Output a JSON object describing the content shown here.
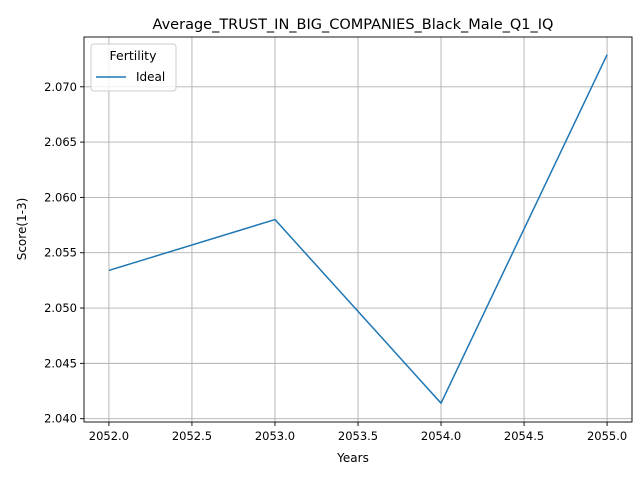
{
  "chart_data": {
    "type": "line",
    "title": "Average_TRUST_IN_BIG_COMPANIES_Black_Male_Q1_IQ",
    "xlabel": "Years",
    "ylabel": "Score(1-3)",
    "x": [
      2052,
      2053,
      2054,
      2055
    ],
    "series": [
      {
        "name": "Ideal",
        "values": [
          2.0534,
          2.058,
          2.0414,
          2.0729
        ],
        "color": "#1f77b4"
      }
    ],
    "xlim": [
      2051.85,
      2055.15
    ],
    "ylim": [
      2.0397,
      2.0745
    ],
    "xticks": [
      "2052.0",
      "2052.5",
      "2053.0",
      "2053.5",
      "2054.0",
      "2054.5",
      "2055.0"
    ],
    "yticks": [
      "2.040",
      "2.045",
      "2.050",
      "2.055",
      "2.060",
      "2.065",
      "2.070"
    ],
    "grid": true,
    "legend": {
      "title": "Fertility",
      "placement": "top-left"
    }
  }
}
